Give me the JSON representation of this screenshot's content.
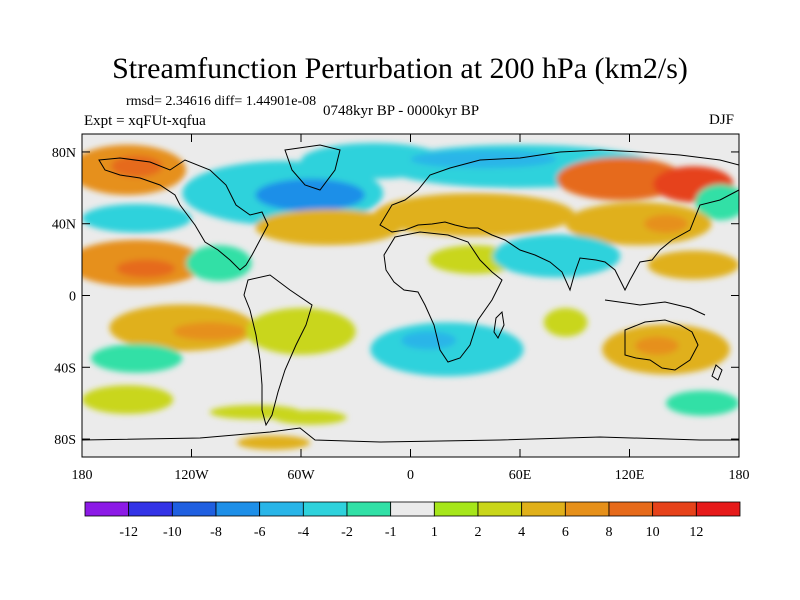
{
  "title": "Streamfunction Perturbation at 200 hPa (km2/s)",
  "stats": "rmsd= 2.34616 diff= 1.44901e-08",
  "expt": "Expt = xqFUt-xqfua",
  "period": "0748kyr BP - 0000kyr BP",
  "season": "DJF",
  "map": {
    "projection": "cylindrical equidistant",
    "lon_range": [
      -180,
      180
    ],
    "lat_range": [
      -90,
      90
    ],
    "lon_ticks": [
      {
        "value": -180,
        "label": "180"
      },
      {
        "value": -120,
        "label": "120W"
      },
      {
        "value": -60,
        "label": "60W"
      },
      {
        "value": 0,
        "label": "0"
      },
      {
        "value": 60,
        "label": "60E"
      },
      {
        "value": 120,
        "label": "120E"
      },
      {
        "value": 180,
        "label": "180"
      }
    ],
    "lat_ticks": [
      {
        "value": 80,
        "label": "80N"
      },
      {
        "value": 40,
        "label": "40N"
      },
      {
        "value": 0,
        "label": "0"
      },
      {
        "value": -40,
        "label": "40S"
      },
      {
        "value": -80,
        "label": "80S"
      }
    ],
    "anomalies": [
      {
        "lon": -155,
        "lat": 70,
        "rx": 32,
        "ry": 14,
        "v": 6
      },
      {
        "lon": -150,
        "lat": 72,
        "rx": 14,
        "ry": 6,
        "v": 8
      },
      {
        "lon": -70,
        "lat": 57,
        "rx": 55,
        "ry": 18,
        "v": -4
      },
      {
        "lon": -55,
        "lat": 56,
        "rx": 30,
        "ry": 9,
        "v": -8
      },
      {
        "lon": -20,
        "lat": 75,
        "rx": 40,
        "ry": 10,
        "v": -4
      },
      {
        "lon": 60,
        "lat": 72,
        "rx": 75,
        "ry": 12,
        "v": -4
      },
      {
        "lon": 40,
        "lat": 76,
        "rx": 40,
        "ry": 5,
        "v": -6
      },
      {
        "lon": 115,
        "lat": 65,
        "rx": 35,
        "ry": 12,
        "v": 8
      },
      {
        "lon": 155,
        "lat": 62,
        "rx": 22,
        "ry": 10,
        "v": 10
      },
      {
        "lon": 170,
        "lat": 52,
        "rx": 14,
        "ry": 10,
        "v": -2
      },
      {
        "lon": -150,
        "lat": 43,
        "rx": 30,
        "ry": 8,
        "v": -4
      },
      {
        "lon": -45,
        "lat": 38,
        "rx": 40,
        "ry": 10,
        "v": 4
      },
      {
        "lon": 35,
        "lat": 45,
        "rx": 55,
        "ry": 12,
        "v": 4
      },
      {
        "lon": 125,
        "lat": 40,
        "rx": 40,
        "ry": 12,
        "v": 4
      },
      {
        "lon": 140,
        "lat": 40,
        "rx": 12,
        "ry": 5,
        "v": 6
      },
      {
        "lon": -150,
        "lat": 18,
        "rx": 38,
        "ry": 13,
        "v": 6
      },
      {
        "lon": -145,
        "lat": 15,
        "rx": 16,
        "ry": 5,
        "v": 8
      },
      {
        "lon": -105,
        "lat": 18,
        "rx": 18,
        "ry": 10,
        "v": -2
      },
      {
        "lon": -40,
        "lat": 15,
        "rx": 30,
        "ry": 9,
        "v": -1
      },
      {
        "lon": 35,
        "lat": 20,
        "rx": 25,
        "ry": 8,
        "v": 2
      },
      {
        "lon": 80,
        "lat": 22,
        "rx": 35,
        "ry": 12,
        "v": -4
      },
      {
        "lon": 155,
        "lat": 17,
        "rx": 25,
        "ry": 8,
        "v": 4
      },
      {
        "lon": -125,
        "lat": -18,
        "rx": 40,
        "ry": 13,
        "v": 4
      },
      {
        "lon": -110,
        "lat": -20,
        "rx": 20,
        "ry": 5,
        "v": 6
      },
      {
        "lon": -150,
        "lat": -35,
        "rx": 25,
        "ry": 8,
        "v": -2
      },
      {
        "lon": -60,
        "lat": -20,
        "rx": 30,
        "ry": 13,
        "v": 2
      },
      {
        "lon": 20,
        "lat": -30,
        "rx": 42,
        "ry": 15,
        "v": -4
      },
      {
        "lon": 10,
        "lat": -25,
        "rx": 15,
        "ry": 5,
        "v": -6
      },
      {
        "lon": 85,
        "lat": -15,
        "rx": 12,
        "ry": 8,
        "v": 2
      },
      {
        "lon": 140,
        "lat": -30,
        "rx": 35,
        "ry": 14,
        "v": 4
      },
      {
        "lon": 135,
        "lat": -28,
        "rx": 12,
        "ry": 5,
        "v": 6
      },
      {
        "lon": -155,
        "lat": -58,
        "rx": 25,
        "ry": 8,
        "v": 2
      },
      {
        "lon": -85,
        "lat": -65,
        "rx": 25,
        "ry": 4,
        "v": 2
      },
      {
        "lon": -55,
        "lat": -68,
        "rx": 20,
        "ry": 4,
        "v": 2
      },
      {
        "lon": -75,
        "lat": -82,
        "rx": 20,
        "ry": 4,
        "v": 4
      },
      {
        "lon": 160,
        "lat": -60,
        "rx": 20,
        "ry": 7,
        "v": -2
      }
    ]
  },
  "colorbar": {
    "colors": [
      "#8c1ae6",
      "#3333e6",
      "#1f5fe0",
      "#1e8fe8",
      "#29b5e8",
      "#2ed2dc",
      "#31e0a6",
      "#ebebeb",
      "#a6e61a",
      "#c9d61a",
      "#e0b01a",
      "#e6901a",
      "#e66a1a",
      "#e6421a",
      "#e61a1a"
    ],
    "labels": [
      "-12",
      "-10",
      "-8",
      "-6",
      "-4",
      "-2",
      "-1",
      "1",
      "2",
      "4",
      "6",
      "8",
      "10",
      "12"
    ]
  },
  "levels": [
    -12,
    -10,
    -8,
    -6,
    -4,
    -2,
    -1,
    1,
    2,
    4,
    6,
    8,
    10,
    12
  ]
}
